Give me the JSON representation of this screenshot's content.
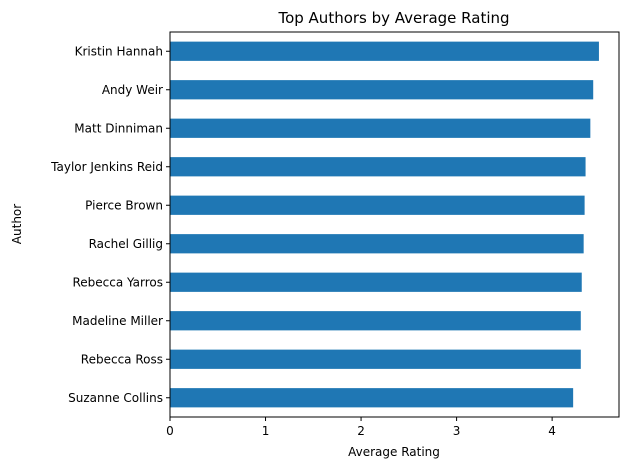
{
  "chart_data": {
    "type": "bar",
    "orientation": "horizontal",
    "title": "Top Authors by Average Rating",
    "xlabel": "Average Rating",
    "ylabel": "Author",
    "categories": [
      "Kristin Hannah",
      "Andy Weir",
      "Matt Dinniman",
      "Taylor Jenkins Reid",
      "Pierce Brown",
      "Rachel Gillig",
      "Rebecca Yarros",
      "Madeline Miller",
      "Rebecca Ross",
      "Suzanne Collins"
    ],
    "values": [
      4.49,
      4.43,
      4.4,
      4.35,
      4.34,
      4.33,
      4.31,
      4.3,
      4.3,
      4.22
    ],
    "xlim": [
      0,
      4.7
    ],
    "xticks": [
      "0",
      "1",
      "2",
      "3",
      "4"
    ],
    "grid": false,
    "bar_color": "#1f77b4"
  }
}
